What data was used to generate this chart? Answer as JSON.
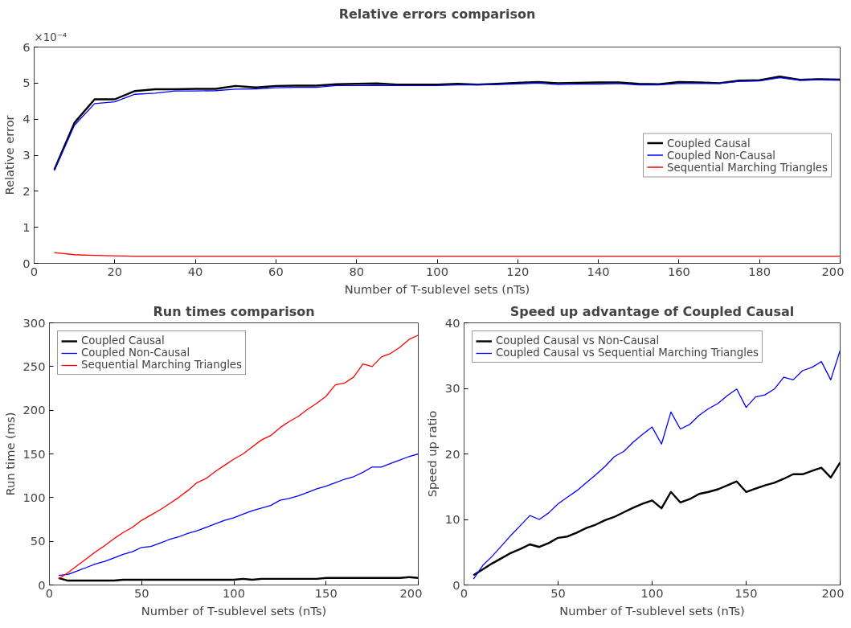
{
  "chart_data": [
    {
      "type": "line",
      "title": "Relative errors comparison",
      "xlabel": "Number of T-sublevel sets (nTs)",
      "ylabel": "Relative error",
      "annotations": [
        "×10⁻⁴"
      ],
      "x": [
        5,
        10,
        15,
        20,
        25,
        30,
        35,
        40,
        45,
        50,
        55,
        60,
        65,
        70,
        75,
        80,
        85,
        90,
        95,
        100,
        105,
        110,
        115,
        120,
        125,
        130,
        135,
        140,
        145,
        150,
        155,
        160,
        165,
        170,
        175,
        180,
        185,
        190,
        195,
        200
      ],
      "xlim": [
        0,
        200
      ],
      "xticks": [
        0,
        20,
        40,
        60,
        80,
        100,
        120,
        140,
        160,
        180,
        200
      ],
      "ylim": [
        0,
        6
      ],
      "yticks": [
        0,
        1,
        2,
        3,
        4,
        5,
        6
      ],
      "grid": false,
      "legend": "right",
      "series": [
        {
          "name": "Coupled Causal",
          "color": "#000000",
          "values": [
            2.6,
            3.9,
            4.55,
            4.55,
            4.78,
            4.83,
            4.83,
            4.84,
            4.84,
            4.92,
            4.88,
            4.92,
            4.93,
            4.93,
            4.97,
            4.98,
            4.99,
            4.96,
            4.96,
            4.96,
            4.98,
            4.96,
            4.98,
            5.01,
            5.03,
            5.0,
            5.01,
            5.02,
            5.02,
            4.98,
            4.97,
            5.03,
            5.02,
            5.0,
            5.07,
            5.08,
            5.18,
            5.09,
            5.11,
            5.1
          ]
        },
        {
          "name": "Coupled Non-Causal",
          "color": "#0000ff",
          "values": [
            2.57,
            3.83,
            4.43,
            4.48,
            4.69,
            4.72,
            4.78,
            4.78,
            4.79,
            4.83,
            4.84,
            4.87,
            4.88,
            4.88,
            4.93,
            4.93,
            4.94,
            4.93,
            4.93,
            4.93,
            4.95,
            4.95,
            4.96,
            4.98,
            5.0,
            4.96,
            4.97,
            4.97,
            4.99,
            4.95,
            4.95,
            4.99,
            4.99,
            4.99,
            5.05,
            5.06,
            5.15,
            5.08,
            5.09,
            5.08
          ]
        },
        {
          "name": "Sequential Marching Triangles",
          "color": "#ff0000",
          "values": [
            0.3,
            0.24,
            0.22,
            0.21,
            0.2,
            0.2,
            0.2,
            0.2,
            0.2,
            0.2,
            0.2,
            0.2,
            0.2,
            0.2,
            0.2,
            0.2,
            0.2,
            0.2,
            0.2,
            0.2,
            0.2,
            0.2,
            0.2,
            0.2,
            0.2,
            0.2,
            0.2,
            0.2,
            0.2,
            0.2,
            0.2,
            0.2,
            0.2,
            0.2,
            0.2,
            0.2,
            0.2,
            0.2,
            0.2,
            0.2
          ]
        }
      ]
    },
    {
      "type": "line",
      "title": "Run times comparison",
      "xlabel": "Number of T-sublevel sets (nTs)",
      "ylabel": "Run time (ms)",
      "x": [
        5,
        10,
        15,
        20,
        25,
        30,
        35,
        40,
        45,
        50,
        55,
        60,
        65,
        70,
        75,
        80,
        85,
        90,
        95,
        100,
        105,
        110,
        115,
        120,
        125,
        130,
        135,
        140,
        145,
        150,
        155,
        160,
        165,
        170,
        175,
        180,
        185,
        190,
        195,
        200
      ],
      "xlim": [
        0,
        200
      ],
      "xticks": [
        0,
        50,
        100,
        150,
        200
      ],
      "ylim": [
        0,
        300
      ],
      "yticks": [
        0,
        50,
        100,
        150,
        200,
        250,
        300
      ],
      "grid": false,
      "legend": "top left",
      "series": [
        {
          "name": "Coupled Causal",
          "color": "#000000",
          "values": [
            8,
            5,
            5,
            5,
            5,
            5,
            5,
            6,
            6,
            6,
            6,
            6,
            6,
            6,
            6,
            6,
            6,
            6,
            6,
            6,
            7,
            6,
            7,
            7,
            7,
            7,
            7,
            7,
            7,
            8,
            8,
            8,
            8,
            8,
            8,
            8,
            8,
            8,
            9,
            8
          ]
        },
        {
          "name": "Coupled Non-Causal",
          "color": "#0000ff",
          "values": [
            11,
            12,
            16,
            20,
            24,
            27,
            31,
            35,
            38,
            43,
            44,
            48,
            52,
            55,
            59,
            62,
            66,
            70,
            74,
            77,
            81,
            85,
            88,
            91,
            97,
            99,
            102,
            106,
            110,
            113,
            117,
            121,
            124,
            129,
            135,
            135,
            139,
            143,
            147,
            150
          ]
        },
        {
          "name": "Sequential Marching Triangles",
          "color": "#ff0000",
          "values": [
            7,
            14,
            22,
            30,
            38,
            45,
            53,
            60,
            66,
            74,
            80,
            86,
            93,
            100,
            108,
            117,
            122,
            130,
            137,
            144,
            150,
            158,
            166,
            171,
            180,
            187,
            193,
            201,
            208,
            216,
            229,
            231,
            238,
            253,
            250,
            261,
            265,
            272,
            281,
            286
          ]
        }
      ]
    },
    {
      "type": "line",
      "title": "Speed up advantage of Coupled Causal",
      "xlabel": "Number of T-sublevel sets (nTs)",
      "ylabel": "Speed up ratio",
      "x": [
        5,
        10,
        15,
        20,
        25,
        30,
        35,
        40,
        45,
        50,
        55,
        60,
        65,
        70,
        75,
        80,
        85,
        90,
        95,
        100,
        105,
        110,
        115,
        120,
        125,
        130,
        135,
        140,
        145,
        150,
        155,
        160,
        165,
        170,
        175,
        180,
        185,
        190,
        195,
        200
      ],
      "xlim": [
        0,
        200
      ],
      "xticks": [
        0,
        50,
        100,
        150,
        200
      ],
      "ylim": [
        0,
        40
      ],
      "yticks": [
        0,
        10,
        20,
        30,
        40
      ],
      "grid": false,
      "legend": "top left",
      "series": [
        {
          "name": "Coupled Causal vs Non-Causal",
          "color": "#000000",
          "values": [
            1.5,
            2.4,
            3.3,
            4.1,
            4.9,
            5.5,
            6.2,
            5.8,
            6.4,
            7.2,
            7.4,
            8.0,
            8.7,
            9.2,
            9.9,
            10.4,
            11.1,
            11.8,
            12.4,
            12.9,
            11.7,
            14.2,
            12.6,
            13.1,
            13.9,
            14.2,
            14.6,
            15.2,
            15.8,
            14.2,
            14.7,
            15.2,
            15.6,
            16.2,
            16.9,
            16.9,
            17.4,
            17.9,
            16.4,
            18.7
          ]
        },
        {
          "name": "Coupled Causal vs Sequential Marching Triangles",
          "color": "#0000ff",
          "values": [
            0.9,
            3.0,
            4.4,
            6.0,
            7.6,
            9.1,
            10.6,
            10.0,
            11.0,
            12.4,
            13.4,
            14.4,
            15.6,
            16.8,
            18.1,
            19.6,
            20.4,
            21.8,
            23.0,
            24.1,
            21.5,
            26.4,
            23.8,
            24.5,
            25.9,
            26.9,
            27.7,
            28.9,
            29.9,
            27.1,
            28.7,
            29.0,
            29.9,
            31.7,
            31.3,
            32.7,
            33.2,
            34.1,
            31.3,
            35.8
          ]
        }
      ]
    }
  ]
}
